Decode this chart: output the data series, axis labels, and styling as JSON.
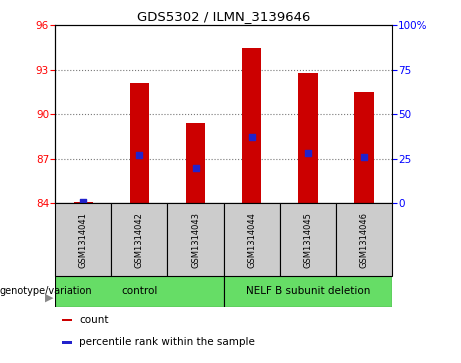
{
  "title": "GDS5302 / ILMN_3139646",
  "samples": [
    "GSM1314041",
    "GSM1314042",
    "GSM1314043",
    "GSM1314044",
    "GSM1314045",
    "GSM1314046"
  ],
  "count_values": [
    84.1,
    92.1,
    89.4,
    94.5,
    92.8,
    91.5
  ],
  "percentile_values": [
    0.5,
    27.0,
    20.0,
    37.0,
    28.0,
    26.0
  ],
  "ylim_left": [
    84,
    96
  ],
  "ylim_right": [
    0,
    100
  ],
  "yticks_left": [
    84,
    87,
    90,
    93,
    96
  ],
  "yticks_right": [
    0,
    25,
    50,
    75,
    100
  ],
  "bar_bottom": 84,
  "bar_color": "#cc0000",
  "dot_color": "#2222cc",
  "group_label": "genotype/variation",
  "legend_items": [
    {
      "color": "#cc0000",
      "label": "count"
    },
    {
      "color": "#2222cc",
      "label": "percentile rank within the sample"
    }
  ],
  "bar_width": 0.35,
  "dot_size": 22,
  "grid_linestyle": "dotted",
  "grid_color": "#555555",
  "grid_alpha": 0.8,
  "sample_box_color": "#cccccc",
  "group_colors": [
    "#66dd66",
    "#44cc44"
  ],
  "group_ranges": [
    [
      -0.5,
      2.5,
      "control"
    ],
    [
      2.5,
      5.5,
      "NELF B subunit deletion"
    ]
  ]
}
